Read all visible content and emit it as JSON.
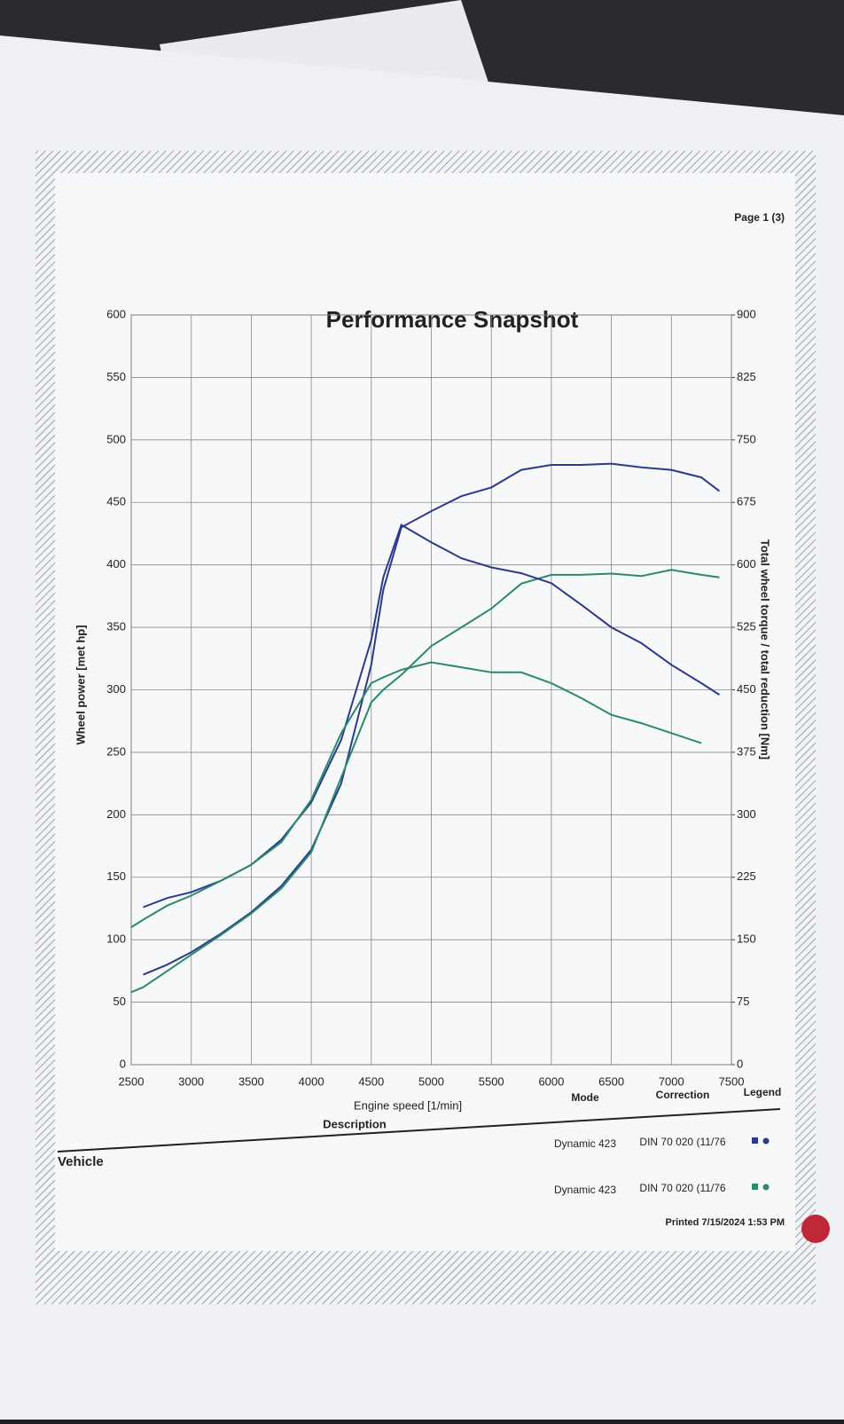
{
  "page": {
    "page_number": "Page 1 (3)",
    "description": "Description",
    "vehicle": "Vehicle",
    "printed": "Printed 7/15/2024 1:53 PM"
  },
  "chart_data": {
    "type": "line",
    "title": "Performance Snapshot",
    "x_label": "Engine speed [1/min]",
    "y_label": "Wheel power [met hp]",
    "y2_label": "Total wheel torque / total reduction [Nm]",
    "x": [
      2500,
      2600,
      2800,
      3000,
      3250,
      3500,
      3750,
      4000,
      4250,
      4500,
      4600,
      4750,
      5000,
      5250,
      5500,
      5750,
      6000,
      6250,
      6500,
      6750,
      7000,
      7250,
      7400
    ],
    "xlim": [
      2500,
      7500
    ],
    "xticks": [
      2500,
      3000,
      3500,
      4000,
      4500,
      5000,
      5500,
      6000,
      6500,
      7000,
      7500
    ],
    "ylim": [
      0,
      600
    ],
    "yticks": [
      0,
      50,
      100,
      150,
      200,
      250,
      300,
      350,
      400,
      450,
      500,
      550,
      600
    ],
    "y2lim": [
      0,
      900
    ],
    "y2ticks": [
      0,
      75,
      150,
      225,
      300,
      375,
      450,
      525,
      600,
      675,
      750,
      825,
      900
    ],
    "grid": true,
    "series": [
      {
        "color": "#2b3a8c",
        "values": [
          null,
          72,
          80,
          90,
          105,
          122,
          143,
          172,
          225,
          320,
          380,
          430,
          443,
          455,
          462,
          476,
          480,
          480,
          481,
          478,
          476,
          470,
          459
        ]
      },
      {
        "color": "#2a8a6a",
        "values": [
          58,
          62,
          75,
          88,
          104,
          121,
          141,
          170,
          230,
          290,
          300,
          312,
          335,
          350,
          365,
          385,
          392,
          392,
          393,
          391,
          396,
          392,
          390
        ]
      },
      {
        "color": "#2b3a8c",
        "axis": "y2",
        "values": [
          null,
          189,
          200,
          207,
          221,
          240,
          270,
          315,
          390,
          510,
          585,
          648,
          627,
          608,
          597,
          590,
          578,
          552,
          525,
          506,
          480,
          458,
          444
        ]
      },
      {
        "color": "#2a8a6a",
        "axis": "y2",
        "values": [
          165,
          174,
          191,
          203,
          221,
          240,
          267,
          318,
          398,
          458,
          465,
          474,
          483,
          477,
          471,
          471,
          458,
          440,
          420,
          410,
          398,
          386,
          null
        ]
      }
    ],
    "legend_table": {
      "headers": [
        "Mode",
        "Correction",
        "Legend"
      ],
      "rows": [
        [
          "Dynamic 423",
          "DIN 70 020 (11/76"
        ],
        [
          "Dynamic 423",
          "DIN 70 020 (11/76"
        ]
      ]
    }
  }
}
